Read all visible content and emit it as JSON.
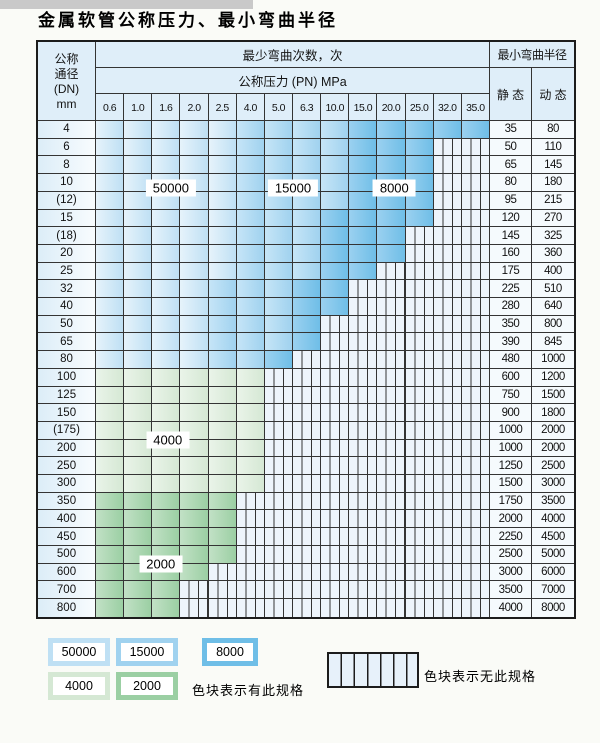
{
  "title": "金属软管公称压力、最小弯曲半径",
  "table": {
    "dn_header": [
      "公称",
      "通径",
      "(DN)",
      "mm"
    ],
    "cycles_header": "最少弯曲次数，次",
    "pressure_header": "公称压力 (PN) MPa",
    "radius_header": "最小弯曲半径",
    "static_header": "静 态",
    "dynamic_header": "动 态",
    "pressure_columns": [
      "0.6",
      "1.0",
      "1.6",
      "2.0",
      "2.5",
      "4.0",
      "5.0",
      "6.3",
      "10.0",
      "15.0",
      "20.0",
      "25.0",
      "32.0",
      "35.0"
    ],
    "rows": [
      {
        "dn": "4",
        "zones": [
          [
            "50000",
            0,
            4
          ],
          [
            "15000",
            5,
            8
          ],
          [
            "8000",
            9,
            13
          ]
        ],
        "static": "35",
        "dynamic": "80"
      },
      {
        "dn": "6",
        "zones": [
          [
            "50000",
            0,
            4
          ],
          [
            "15000",
            5,
            8
          ],
          [
            "8000",
            9,
            11
          ]
        ],
        "static": "50",
        "dynamic": "110"
      },
      {
        "dn": "8",
        "zones": [
          [
            "50000",
            0,
            4
          ],
          [
            "15000",
            5,
            8
          ],
          [
            "8000",
            9,
            11
          ]
        ],
        "static": "65",
        "dynamic": "145"
      },
      {
        "dn": "10",
        "zones": [
          [
            "50000",
            0,
            4
          ],
          [
            "15000",
            5,
            8
          ],
          [
            "8000",
            9,
            11
          ]
        ],
        "static": "80",
        "dynamic": "180"
      },
      {
        "dn": "(12)",
        "zones": [
          [
            "50000",
            0,
            4
          ],
          [
            "15000",
            5,
            8
          ],
          [
            "8000",
            9,
            11
          ]
        ],
        "static": "95",
        "dynamic": "215"
      },
      {
        "dn": "15",
        "zones": [
          [
            "50000",
            0,
            4
          ],
          [
            "15000",
            5,
            7
          ],
          [
            "8000",
            8,
            11
          ]
        ],
        "static": "120",
        "dynamic": "270"
      },
      {
        "dn": "(18)",
        "zones": [
          [
            "50000",
            0,
            4
          ],
          [
            "15000",
            5,
            7
          ],
          [
            "8000",
            8,
            10
          ]
        ],
        "static": "145",
        "dynamic": "325"
      },
      {
        "dn": "20",
        "zones": [
          [
            "50000",
            0,
            4
          ],
          [
            "15000",
            5,
            7
          ],
          [
            "8000",
            8,
            10
          ]
        ],
        "static": "160",
        "dynamic": "360"
      },
      {
        "dn": "25",
        "zones": [
          [
            "50000",
            0,
            4
          ],
          [
            "15000",
            5,
            7
          ],
          [
            "8000",
            8,
            9
          ]
        ],
        "static": "175",
        "dynamic": "400"
      },
      {
        "dn": "32",
        "zones": [
          [
            "50000",
            0,
            3
          ],
          [
            "15000",
            4,
            6
          ],
          [
            "8000",
            7,
            8
          ]
        ],
        "static": "225",
        "dynamic": "510"
      },
      {
        "dn": "40",
        "zones": [
          [
            "50000",
            0,
            3
          ],
          [
            "15000",
            4,
            6
          ],
          [
            "8000",
            7,
            8
          ]
        ],
        "static": "280",
        "dynamic": "640"
      },
      {
        "dn": "50",
        "zones": [
          [
            "50000",
            0,
            3
          ],
          [
            "15000",
            4,
            6
          ],
          [
            "8000",
            7,
            7
          ]
        ],
        "static": "350",
        "dynamic": "800"
      },
      {
        "dn": "65",
        "zones": [
          [
            "50000",
            0,
            3
          ],
          [
            "15000",
            4,
            6
          ],
          [
            "8000",
            7,
            7
          ]
        ],
        "static": "390",
        "dynamic": "845"
      },
      {
        "dn": "80",
        "zones": [
          [
            "50000",
            0,
            3
          ],
          [
            "15000",
            4,
            5
          ],
          [
            "8000",
            6,
            6
          ]
        ],
        "static": "480",
        "dynamic": "1000"
      },
      {
        "dn": "100",
        "zones": [
          [
            "4000",
            0,
            5
          ]
        ],
        "static": "600",
        "dynamic": "1200"
      },
      {
        "dn": "125",
        "zones": [
          [
            "4000",
            0,
            5
          ]
        ],
        "static": "750",
        "dynamic": "1500"
      },
      {
        "dn": "150",
        "zones": [
          [
            "4000",
            0,
            5
          ]
        ],
        "static": "900",
        "dynamic": "1800"
      },
      {
        "dn": "(175)",
        "zones": [
          [
            "4000",
            0,
            5
          ]
        ],
        "static": "1000",
        "dynamic": "2000"
      },
      {
        "dn": "200",
        "zones": [
          [
            "4000",
            0,
            5
          ]
        ],
        "static": "1000",
        "dynamic": "2000"
      },
      {
        "dn": "250",
        "zones": [
          [
            "4000",
            0,
            5
          ]
        ],
        "static": "1250",
        "dynamic": "2500"
      },
      {
        "dn": "300",
        "zones": [
          [
            "4000",
            0,
            5
          ]
        ],
        "static": "1500",
        "dynamic": "3000"
      },
      {
        "dn": "350",
        "zones": [
          [
            "2000",
            0,
            4
          ]
        ],
        "static": "1750",
        "dynamic": "3500"
      },
      {
        "dn": "400",
        "zones": [
          [
            "2000",
            0,
            4
          ]
        ],
        "static": "2000",
        "dynamic": "4000"
      },
      {
        "dn": "450",
        "zones": [
          [
            "2000",
            0,
            4
          ]
        ],
        "static": "2250",
        "dynamic": "4500"
      },
      {
        "dn": "500",
        "zones": [
          [
            "2000",
            0,
            4
          ]
        ],
        "static": "2500",
        "dynamic": "5000"
      },
      {
        "dn": "600",
        "zones": [
          [
            "2000",
            0,
            3
          ]
        ],
        "static": "3000",
        "dynamic": "6000"
      },
      {
        "dn": "700",
        "zones": [
          [
            "2000",
            0,
            2
          ]
        ],
        "static": "3500",
        "dynamic": "7000"
      },
      {
        "dn": "800",
        "zones": [
          [
            "2000",
            0,
            2
          ]
        ],
        "static": "4000",
        "dynamic": "8000"
      }
    ],
    "zone_labels": [
      {
        "text": "50000",
        "col": 2.66,
        "row": 3.8
      },
      {
        "text": "15000",
        "col": 7.0,
        "row": 3.8
      },
      {
        "text": "8000",
        "col": 10.6,
        "row": 3.8
      },
      {
        "text": "4000",
        "col": 2.55,
        "row": 18.0
      },
      {
        "text": "2000",
        "col": 2.3,
        "row": 25.0
      }
    ]
  },
  "legend": {
    "chips": [
      {
        "label": "50000",
        "zone": "50000"
      },
      {
        "label": "15000",
        "zone": "15000"
      },
      {
        "label": "8000",
        "zone": "8000"
      },
      {
        "label": "4000",
        "zone": "4000"
      },
      {
        "label": "2000",
        "zone": "2000"
      }
    ],
    "has_spec_text": "色块表示有此规格",
    "no_spec_text": "色块表示无此规格"
  },
  "colors": {
    "zones": {
      "50000": {
        "base": "#bfe0f4",
        "light": "#e6f3fb"
      },
      "15000": {
        "base": "#a0d2ef",
        "light": "#c6e5f7"
      },
      "8000": {
        "base": "#6fbee7",
        "light": "#9bd1f0"
      },
      "4000": {
        "base": "#d5e8d4",
        "light": "#eaf4e9"
      },
      "2000": {
        "base": "#9bcfa3",
        "light": "#c2e1c6"
      }
    },
    "stripe_bg": "#edf4fb",
    "grid_line": "#343434"
  }
}
